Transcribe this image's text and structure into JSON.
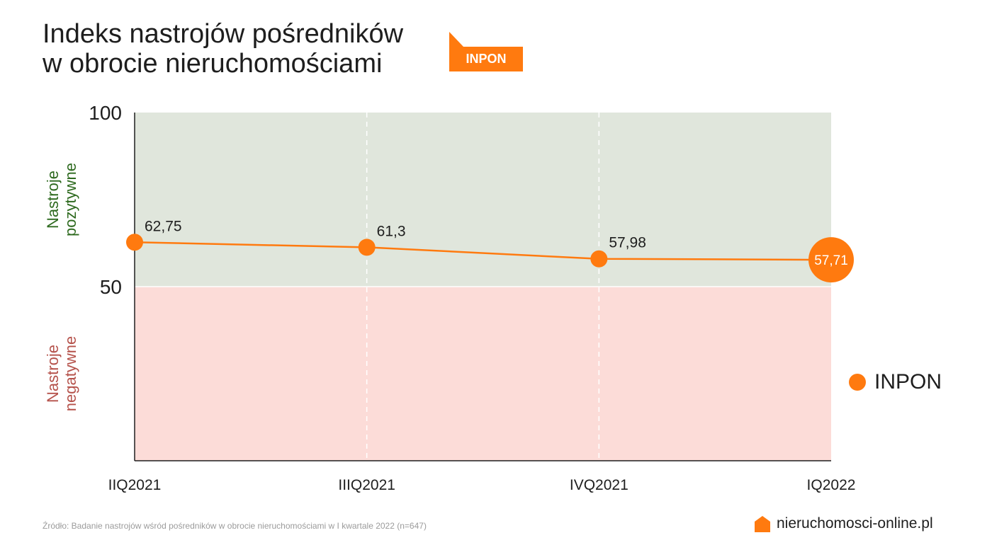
{
  "title": {
    "line1": "Indeks nastrojów pośredników",
    "line2": "w obrocie nieruchomościami"
  },
  "badge": {
    "label": "INPON"
  },
  "colors": {
    "accent": "#ff7a0f",
    "positive_zone": "#e0e6dc",
    "negative_zone": "#fcdcd8",
    "positive_text": "#2e6a1f",
    "negative_text": "#b5524b"
  },
  "zones": {
    "positive_label_1": "Nastroje",
    "positive_label_2": "pozytywne",
    "negative_label_1": "Nastroje",
    "negative_label_2": "negatywne"
  },
  "chart_data": {
    "type": "line",
    "title": "Indeks nastrojów pośredników w obrocie nieruchomościami",
    "categories": [
      "IIQ2021",
      "IIIQ2021",
      "IVQ2021",
      "IQ2022"
    ],
    "series": [
      {
        "name": "INPON",
        "values": [
          62.75,
          61.3,
          57.98,
          57.71
        ],
        "labels": [
          "62,75",
          "61,3",
          "57,98",
          "57,71"
        ]
      }
    ],
    "y_ticks": [
      50,
      100
    ],
    "ylim": [
      0,
      100
    ],
    "grid": "vertical dashed",
    "legend_position": "right"
  },
  "legend": {
    "label": "INPON"
  },
  "source": "Źródło: Badanie nastrojów wśród pośredników w obrocie nieruchomościami w I kwartale 2022 (n=647)",
  "brand": {
    "text": "nieruchomosci-online.pl",
    "icon": "house-icon"
  }
}
